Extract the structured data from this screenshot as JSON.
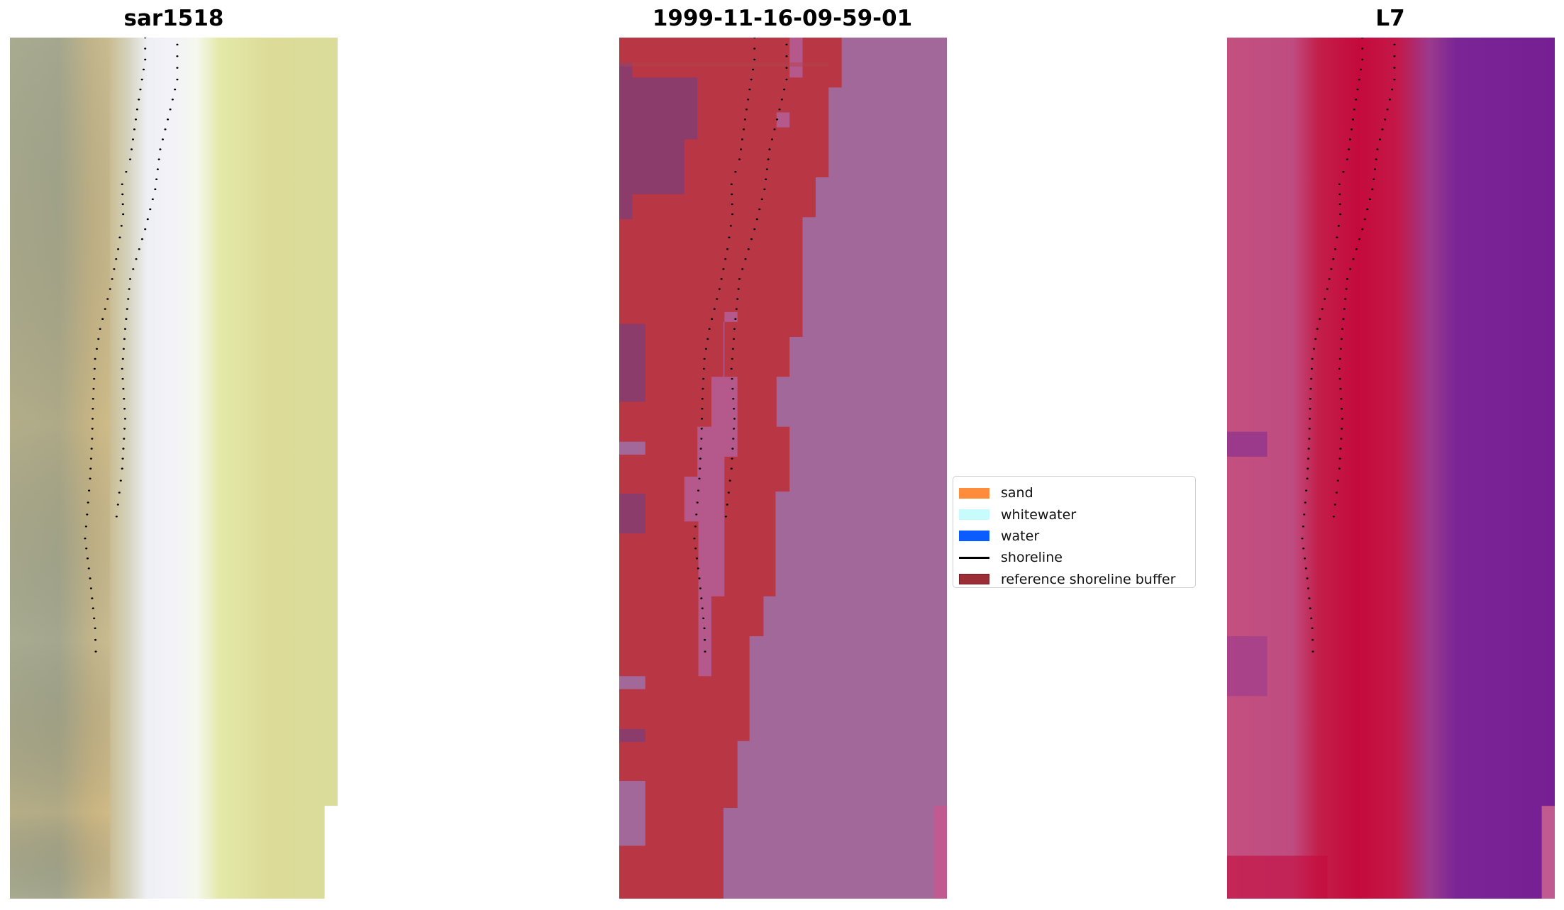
{
  "panels": [
    {
      "title": "sar1518"
    },
    {
      "title": "1999-11-16-09-59-01"
    },
    {
      "title": "L7"
    }
  ],
  "legend": {
    "items": [
      {
        "label": "sand",
        "color": "#ff8c3a",
        "kind": "patch"
      },
      {
        "label": "whitewater",
        "color": "#c8fcfc",
        "kind": "patch"
      },
      {
        "label": "water",
        "color": "#0a5cff",
        "kind": "patch"
      },
      {
        "label": "shoreline",
        "color": "#000000",
        "kind": "line"
      },
      {
        "label": "reference shoreline buffer",
        "color": "#9b2d36",
        "kind": "patch"
      }
    ]
  }
}
